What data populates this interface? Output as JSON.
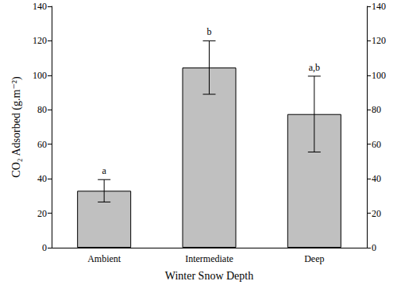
{
  "chart_data": {
    "type": "bar",
    "x_label": "Winter Snow Depth",
    "y_label": "CO₂ Adsorbed (g.m⁻²)",
    "categories": [
      "Ambient",
      "Intermediate",
      "Deep"
    ],
    "values": [
      33,
      104.5,
      77.5
    ],
    "errors": [
      6.5,
      15.5,
      22
    ],
    "letters": [
      "a",
      "b",
      "a,b"
    ],
    "color": "#c0c0c0",
    "ylim": [
      0,
      140
    ],
    "yticks": [
      0,
      20,
      40,
      60,
      80,
      100,
      120,
      140
    ],
    "y2lim": [
      0,
      140
    ],
    "y2ticks": [
      0,
      20,
      40,
      60,
      80,
      100,
      120,
      140
    ],
    "grid": false
  }
}
